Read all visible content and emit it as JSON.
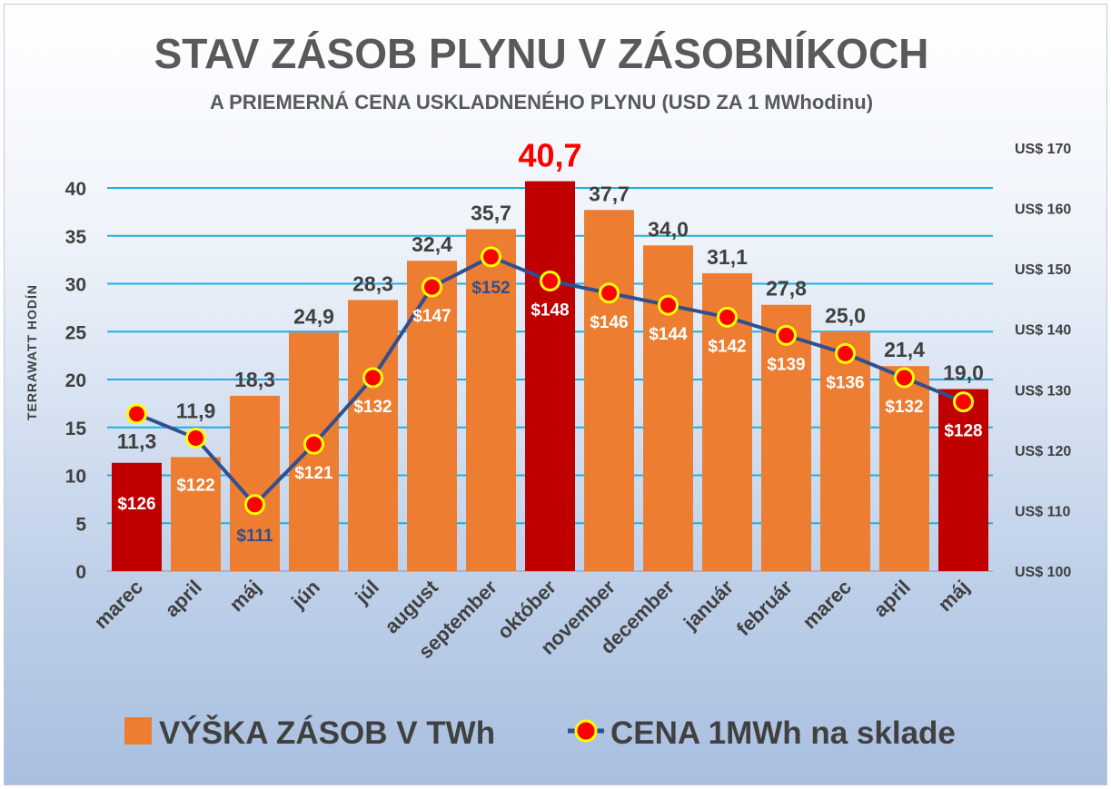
{
  "chart_data": {
    "type": "bar+line",
    "title": "STAV ZÁSOB PLYNU V ZÁSOBNÍKOCH",
    "subtitle": "A PRIEMERNÁ CENA USKLADNENÉHO PLYNU (USD ZA 1 MWhodinu)",
    "ylabel": "TERRAWATT HODÍN",
    "ylim": [
      0,
      40
    ],
    "y_ticks": [
      "0",
      "5",
      "10",
      "15",
      "20",
      "25",
      "30",
      "35",
      "40"
    ],
    "y2lim": [
      100,
      170
    ],
    "y2_ticks": [
      "US$ 100",
      "US$ 110",
      "US$ 120",
      "US$ 130",
      "US$ 140",
      "US$ 150",
      "US$ 160",
      "US$ 170"
    ],
    "categories": [
      "marec",
      "april",
      "máj",
      "jún",
      "júl",
      "august",
      "september",
      "október",
      "november",
      "december",
      "január",
      "február",
      "marec",
      "april",
      "máj"
    ],
    "series": [
      {
        "name": "VÝŠKA ZÁSOB V TWh",
        "kind": "bar",
        "axis": "left",
        "values": [
          11.3,
          11.9,
          18.3,
          24.9,
          28.3,
          32.4,
          35.7,
          40.7,
          37.7,
          34.0,
          31.1,
          27.8,
          25.0,
          21.4,
          19.0
        ],
        "labels": [
          "11,3",
          "11,9",
          "18,3",
          "24,9",
          "28,3",
          "32,4",
          "35,7",
          "40,7",
          "37,7",
          "34,0",
          "31,1",
          "27,8",
          "25,0",
          "21,4",
          "19,0"
        ],
        "highlighted": [
          0,
          7,
          14
        ]
      },
      {
        "name": "CENA 1MWh na sklade",
        "kind": "line",
        "axis": "right",
        "values": [
          126,
          122,
          111,
          121,
          132,
          147,
          152,
          148,
          146,
          144,
          142,
          139,
          136,
          132,
          128
        ],
        "labels": [
          "$126",
          "$122",
          "$111",
          "$121",
          "$132",
          "$147",
          "$152",
          "$148",
          "$146",
          "$144",
          "$142",
          "$139",
          "$136",
          "$132",
          "$128"
        ]
      }
    ],
    "legend": [
      "VÝŠKA ZÁSOB V TWh",
      "CENA 1MWh na sklade"
    ],
    "legend_position": "bottom",
    "grid": true
  },
  "colors": {
    "bar": "#ed7d31",
    "bar_highlight": "#c00000",
    "gridline": "#1fb0e0",
    "line": "#2f4f8f",
    "marker_fill": "#ff0000",
    "marker_stroke": "#ffff00",
    "highlight_label": "#ff0000"
  }
}
